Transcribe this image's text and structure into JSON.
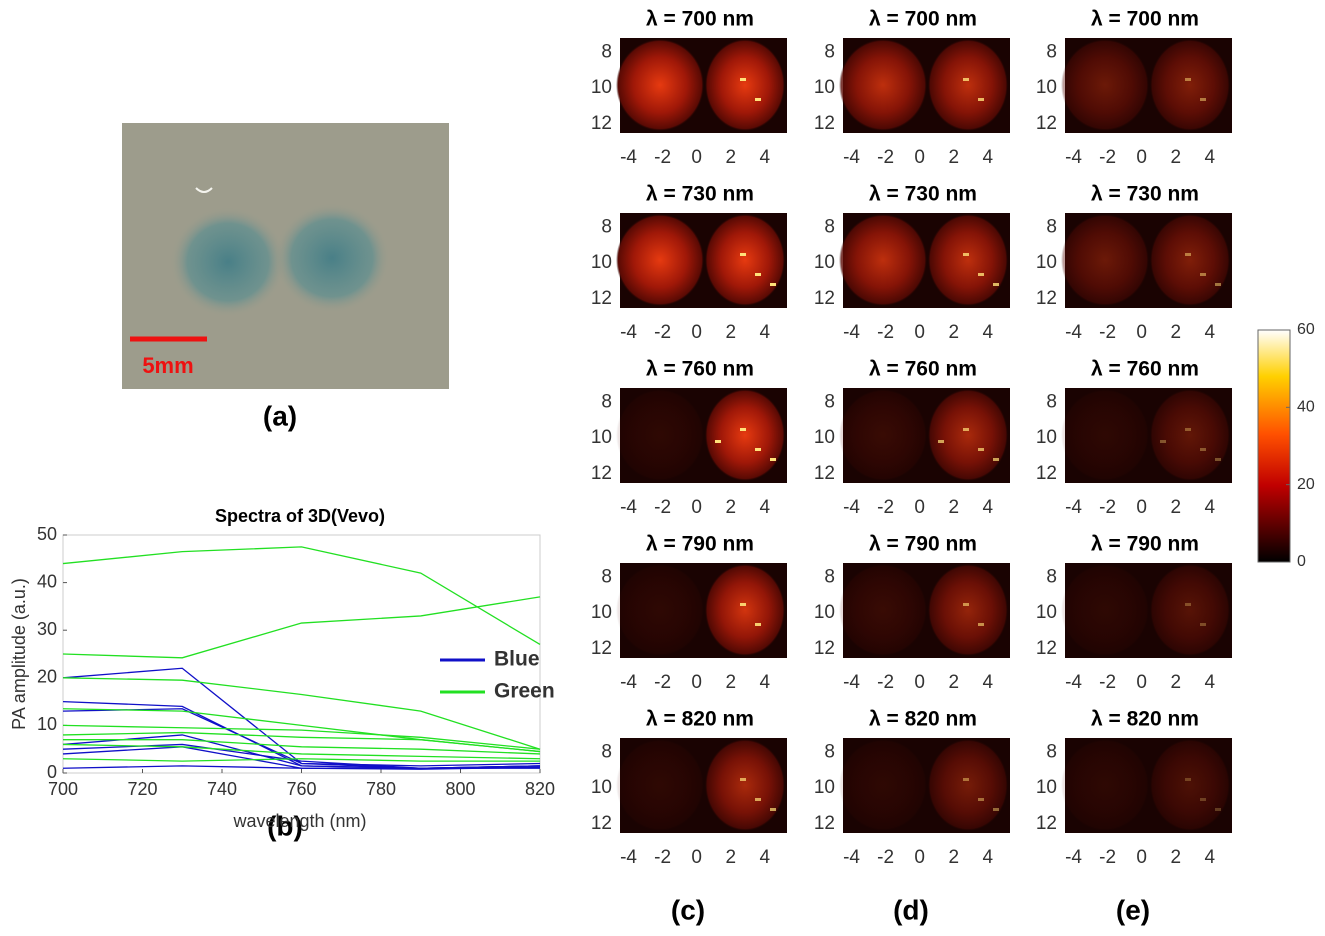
{
  "photo": {
    "scale_bar": "5mm",
    "label": "(a)"
  },
  "chart_data": {
    "type": "line",
    "title": "Spectra of 3D(Vevo)",
    "panel_label": "(b)",
    "x_label": "wavelength (nm)",
    "y_label": "PA amplitude (a.u.)",
    "x": [
      700,
      730,
      760,
      790,
      820
    ],
    "xlim": [
      700,
      820
    ],
    "xticks": [
      700,
      720,
      740,
      760,
      780,
      800,
      820
    ],
    "ylim": [
      0,
      50
    ],
    "yticks": [
      0,
      10,
      20,
      30,
      40,
      50
    ],
    "legend": "right",
    "series": [
      {
        "name": "Blue",
        "color": "#1010c8",
        "values": [
          [
            20,
            22,
            2,
            1,
            1.5
          ],
          [
            15,
            14,
            1.5,
            1,
            1.2
          ],
          [
            13,
            13.5,
            2,
            1.5,
            2
          ],
          [
            6,
            8,
            1.5,
            1,
            1.5
          ],
          [
            5,
            6,
            2.5,
            1,
            1.5
          ],
          [
            4,
            5.5,
            1,
            0.8,
            1.2
          ],
          [
            1,
            1.5,
            1,
            1,
            1
          ]
        ]
      },
      {
        "name": "Green",
        "color": "#22e022",
        "values": [
          [
            44,
            46.5,
            47.5,
            42,
            27
          ],
          [
            25,
            24.2,
            31.5,
            33,
            37
          ],
          [
            20,
            19.5,
            16.5,
            13,
            5
          ],
          [
            13.5,
            13,
            10,
            7,
            4.5
          ],
          [
            10,
            9.5,
            9,
            7.5,
            5
          ],
          [
            8,
            8.5,
            7.5,
            7,
            4.5
          ],
          [
            7,
            7,
            5.5,
            5,
            4
          ],
          [
            6,
            5.5,
            4,
            3.5,
            3
          ],
          [
            3,
            2.5,
            3,
            2.5,
            2.5
          ]
        ]
      }
    ]
  },
  "maps": {
    "rows": [
      "λ = 700 nm",
      "λ = 730 nm",
      "λ = 760 nm",
      "λ = 790 nm",
      "λ = 820 nm"
    ],
    "columns": [
      "(c)",
      "(d)",
      "(e)"
    ],
    "xlim": [
      -4.5,
      5.3
    ],
    "xticks": [
      -4,
      -2,
      0,
      2,
      4
    ],
    "ylim": [
      7.2,
      12.5
    ],
    "yticks": [
      8,
      10,
      12
    ],
    "colorbar": {
      "lim": [
        0,
        60
      ],
      "ticks": [
        0,
        20,
        40,
        60
      ]
    }
  }
}
